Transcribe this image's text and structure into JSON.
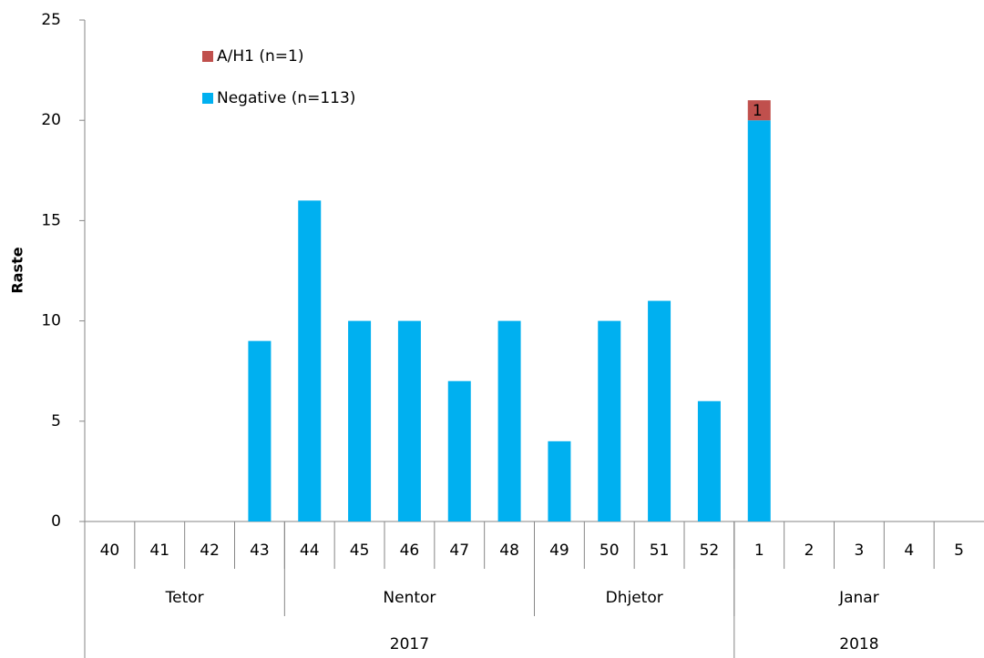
{
  "chart_data": {
    "type": "stacked_bar",
    "y_label": "Raste",
    "categories": [
      {
        "week": "40",
        "month": "Tetor",
        "year": "2017"
      },
      {
        "week": "41",
        "month": "Tetor",
        "year": "2017"
      },
      {
        "week": "42",
        "month": "Tetor",
        "year": "2017"
      },
      {
        "week": "43",
        "month": "Tetor",
        "year": "2017"
      },
      {
        "week": "44",
        "month": "Nentor",
        "year": "2017"
      },
      {
        "week": "45",
        "month": "Nentor",
        "year": "2017"
      },
      {
        "week": "46",
        "month": "Nentor",
        "year": "2017"
      },
      {
        "week": "47",
        "month": "Nentor",
        "year": "2017"
      },
      {
        "week": "48",
        "month": "Nentor",
        "year": "2017"
      },
      {
        "week": "49",
        "month": "Dhjetor",
        "year": "2017"
      },
      {
        "week": "50",
        "month": "Dhjetor",
        "year": "2017"
      },
      {
        "week": "51",
        "month": "Dhjetor",
        "year": "2017"
      },
      {
        "week": "52",
        "month": "Dhjetor",
        "year": "2017"
      },
      {
        "week": "1",
        "month": "Janar",
        "year": "2018"
      },
      {
        "week": "2",
        "month": "Janar",
        "year": "2018"
      },
      {
        "week": "3",
        "month": "Janar",
        "year": "2018"
      },
      {
        "week": "4",
        "month": "Janar",
        "year": "2018"
      },
      {
        "week": "5",
        "month": "Janar",
        "year": "2018"
      }
    ],
    "series": [
      {
        "name": "Negative (n=113)",
        "color": "#00b0f0",
        "values": [
          0,
          0,
          0,
          9,
          16,
          10,
          10,
          7,
          10,
          4,
          10,
          11,
          6,
          20,
          0,
          0,
          0,
          0
        ]
      },
      {
        "name": "A/H1 (n=1)",
        "color": "#c0504d",
        "show_labels": true,
        "values": [
          0,
          0,
          0,
          0,
          0,
          0,
          0,
          0,
          0,
          0,
          0,
          0,
          0,
          1,
          0,
          0,
          0,
          0
        ]
      }
    ],
    "ylim": [
      0,
      25
    ],
    "yticks": [
      0,
      5,
      10,
      15,
      20,
      25
    ],
    "grid": false,
    "legend": "top-left"
  }
}
